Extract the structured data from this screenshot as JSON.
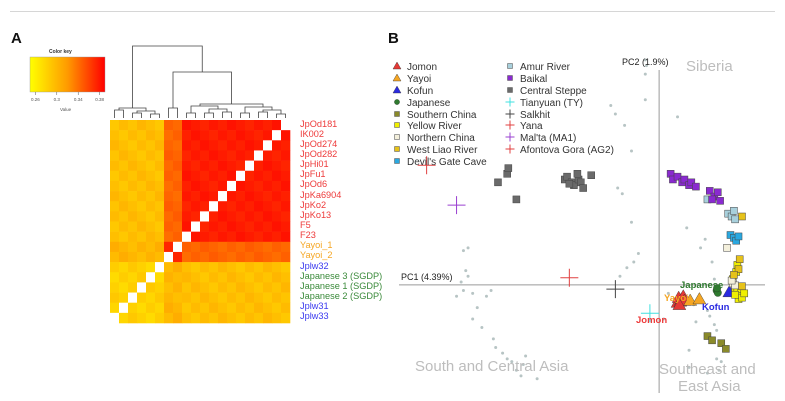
{
  "panels": {
    "a_label": "A",
    "b_label": "B"
  },
  "colors": {
    "jomon": "#e53935",
    "yayoi": "#f5a623",
    "kofun": "#2a2ae0",
    "japanese": "#3a8a3a",
    "label_jomon": "#ee3b3b",
    "label_yayoi": "#f5a623",
    "label_jplw": "#3a3aee",
    "label_sgdp": "#3a8a3a"
  },
  "chart_data": [
    {
      "type": "heatmap",
      "title": "",
      "color_key": {
        "title": "Color key",
        "xlabel": "Value",
        "ticks": [
          "0.26",
          "0.3",
          "0.34",
          "0.38"
        ],
        "range": [
          0.25,
          0.39
        ],
        "low_color": "#ffff00",
        "high_color": "#ff0000"
      },
      "rows": [
        {
          "label": "JpOd181",
          "group": "jomon"
        },
        {
          "label": "IK002",
          "group": "jomon"
        },
        {
          "label": "JpOd274",
          "group": "jomon"
        },
        {
          "label": "JpOd282",
          "group": "jomon"
        },
        {
          "label": "JpHi01",
          "group": "jomon"
        },
        {
          "label": "JpFu1",
          "group": "jomon"
        },
        {
          "label": "JpOd6",
          "group": "jomon"
        },
        {
          "label": "JpKa6904",
          "group": "jomon"
        },
        {
          "label": "JpKo2",
          "group": "jomon"
        },
        {
          "label": "JpKo13",
          "group": "jomon"
        },
        {
          "label": "F5",
          "group": "jomon"
        },
        {
          "label": "F23",
          "group": "jomon"
        },
        {
          "label": "Yayoi_1",
          "group": "yayoi"
        },
        {
          "label": "Yayoi_2",
          "group": "yayoi"
        },
        {
          "label": "Jplw32",
          "group": "jplw"
        },
        {
          "label": "Japanese 3 (SGDP)",
          "group": "sgdp"
        },
        {
          "label": "Japanese 1 (SGDP)",
          "group": "sgdp"
        },
        {
          "label": "Japanese 2 (SGDP)",
          "group": "sgdp"
        },
        {
          "label": "Jplw31",
          "group": "jplw"
        },
        {
          "label": "Jplw33",
          "group": "jplw"
        }
      ],
      "group_values": {
        "jomon-jomon": 0.375,
        "jomon-yayoi": 0.335,
        "jomon-jp": 0.285,
        "yayoi-yayoi": 0.37,
        "yayoi-jp": 0.29,
        "jp-jp": 0.275
      },
      "dendrogram": "hierarchical clustering of columns: Japanese/Jplw | (Yayoi | Jomon)"
    },
    {
      "type": "scatter",
      "xlabel": "PC1 (4.39%)",
      "ylabel": "PC2 (1.9%)",
      "region_labels": [
        "Siberia",
        "South and Central Asia",
        "Southeast and\nEast Asia"
      ],
      "region_siberia": "Siberia",
      "region_south": "South and Central Asia",
      "region_se_1": "Southeast and",
      "region_se_2": "East Asia",
      "point_labels": {
        "jomon": "Jomon",
        "yayoi": "Yayoi",
        "kofun": "Kofun",
        "japanese": "Japanese"
      },
      "legend_position": "top-left",
      "legend": [
        {
          "name": "Jomon",
          "marker": "triangle",
          "color": "#e53935"
        },
        {
          "name": "Yayoi",
          "marker": "triangle",
          "color": "#f5a623"
        },
        {
          "name": "Kofun",
          "marker": "triangle",
          "color": "#2a2ae0"
        },
        {
          "name": "Japanese",
          "marker": "circle",
          "color": "#2f7a2f"
        },
        {
          "name": "Southern China",
          "marker": "square",
          "color": "#8a8a2a"
        },
        {
          "name": "Yellow River",
          "marker": "square",
          "color": "#f0f000"
        },
        {
          "name": "Northern China",
          "marker": "square",
          "color": "#f4f0dc"
        },
        {
          "name": "West Liao River",
          "marker": "square",
          "color": "#e6c21a"
        },
        {
          "name": "Devil's Gate Cave",
          "marker": "square",
          "color": "#2aa8e0"
        },
        {
          "name": "Amur River",
          "marker": "square",
          "color": "#a8d0dc"
        },
        {
          "name": "Baikal",
          "marker": "square",
          "color": "#8a2ad0"
        },
        {
          "name": "Central Steppe",
          "marker": "square",
          "color": "#6a6a6a"
        },
        {
          "name": "Tianyuan (TY)",
          "marker": "plus",
          "color": "#40e0e0"
        },
        {
          "name": "Salkhit",
          "marker": "plus",
          "color": "#444444"
        },
        {
          "name": "Yana",
          "marker": "plus",
          "color": "#e04040"
        },
        {
          "name": "Mal'ta (MA1)",
          "marker": "plus",
          "color": "#9a40d0"
        },
        {
          "name": "Afontova Gora (AG2)",
          "marker": "plus",
          "color": "#e04040"
        }
      ],
      "series": [
        {
          "name": "Jomon",
          "points": [
            [
              0.8,
              -0.62
            ],
            [
              0.85,
              -0.45
            ],
            [
              0.92,
              -0.58
            ],
            [
              0.98,
              -0.5
            ],
            [
              1.05,
              -0.4
            ],
            [
              1.1,
              -0.55
            ],
            [
              0.88,
              -0.7
            ]
          ]
        },
        {
          "name": "Yayoi",
          "points": [
            [
              1.35,
              -0.55
            ],
            [
              1.75,
              -0.5
            ]
          ]
        },
        {
          "name": "Kofun",
          "points": [
            [
              3.05,
              -0.25
            ]
          ]
        },
        {
          "name": "Japanese",
          "points": [
            [
              2.5,
              -0.2
            ],
            [
              2.55,
              -0.28
            ],
            [
              2.52,
              -0.12
            ]
          ]
        },
        {
          "name": "Southern China",
          "points": [
            [
              2.1,
              -1.8
            ],
            [
              2.3,
              -1.95
            ],
            [
              2.7,
              -2.05
            ],
            [
              2.9,
              -2.25
            ]
          ]
        },
        {
          "name": "Yellow River",
          "points": [
            [
              3.3,
              -0.1
            ],
            [
              3.4,
              -0.25
            ],
            [
              3.5,
              -0.35
            ],
            [
              3.55,
              -0.15
            ],
            [
              3.45,
              -0.5
            ],
            [
              3.6,
              -0.45
            ],
            [
              3.7,
              -0.3
            ],
            [
              3.3,
              -0.35
            ],
            [
              3.2,
              0.2
            ],
            [
              3.35,
              0.45
            ],
            [
              3.4,
              0.7
            ]
          ]
        },
        {
          "name": "Northern China",
          "points": [
            [
              3.2,
              0.05
            ],
            [
              3.3,
              -0.02
            ],
            [
              3.15,
              0.15
            ],
            [
              2.95,
              1.3
            ]
          ]
        },
        {
          "name": "West Liao River",
          "points": [
            [
              3.45,
              0.55
            ],
            [
              3.5,
              0.9
            ],
            [
              3.6,
              -0.05
            ],
            [
              3.25,
              0.35
            ],
            [
              3.6,
              2.4
            ]
          ]
        },
        {
          "name": "Devil's Gate Cave",
          "points": [
            [
              3.1,
              1.75
            ],
            [
              3.25,
              1.65
            ],
            [
              3.35,
              1.55
            ],
            [
              3.45,
              1.7
            ]
          ]
        },
        {
          "name": "Amur River",
          "points": [
            [
              2.1,
              3.0
            ],
            [
              3.0,
              2.5
            ],
            [
              3.15,
              2.4
            ],
            [
              3.3,
              2.3
            ],
            [
              3.25,
              2.6
            ]
          ]
        },
        {
          "name": "Baikal",
          "points": [
            [
              0.5,
              3.9
            ],
            [
              0.6,
              3.7
            ],
            [
              0.8,
              3.8
            ],
            [
              1.0,
              3.6
            ],
            [
              1.1,
              3.7
            ],
            [
              1.3,
              3.5
            ],
            [
              1.4,
              3.6
            ],
            [
              1.6,
              3.45
            ],
            [
              2.2,
              3.3
            ],
            [
              2.4,
              3.1
            ],
            [
              2.55,
              3.25
            ],
            [
              2.65,
              2.95
            ],
            [
              2.3,
              3.0
            ]
          ]
        },
        {
          "name": "Central Steppe",
          "points": [
            [
              -7.0,
              3.6
            ],
            [
              -6.6,
              3.9
            ],
            [
              -6.55,
              4.1
            ],
            [
              -6.2,
              3.0
            ],
            [
              -4.1,
              3.7
            ],
            [
              -4.0,
              3.8
            ],
            [
              -3.8,
              3.6
            ],
            [
              -3.7,
              3.5
            ],
            [
              -3.5,
              3.7
            ],
            [
              -3.4,
              3.6
            ],
            [
              -3.3,
              3.4
            ],
            [
              -3.55,
              3.9
            ],
            [
              -3.9,
              3.55
            ],
            [
              -2.95,
              3.85
            ]
          ]
        },
        {
          "name": "Tianyuan (TY)",
          "points": [
            [
              -0.4,
              -1.0
            ]
          ]
        },
        {
          "name": "Salkhit",
          "points": [
            [
              -1.9,
              -0.15
            ]
          ]
        },
        {
          "name": "Yana",
          "points": [
            [
              -3.9,
              0.25
            ]
          ]
        },
        {
          "name": "Mal'ta (MA1)",
          "points": [
            [
              -8.8,
              2.8
            ]
          ]
        },
        {
          "name": "Afontova Gora (AG2)",
          "points": [
            [
              -10.1,
              4.2
            ]
          ]
        }
      ],
      "xlim": [
        -11.3,
        4.6
      ],
      "ylim": [
        -3.8,
        8.6
      ]
    }
  ]
}
